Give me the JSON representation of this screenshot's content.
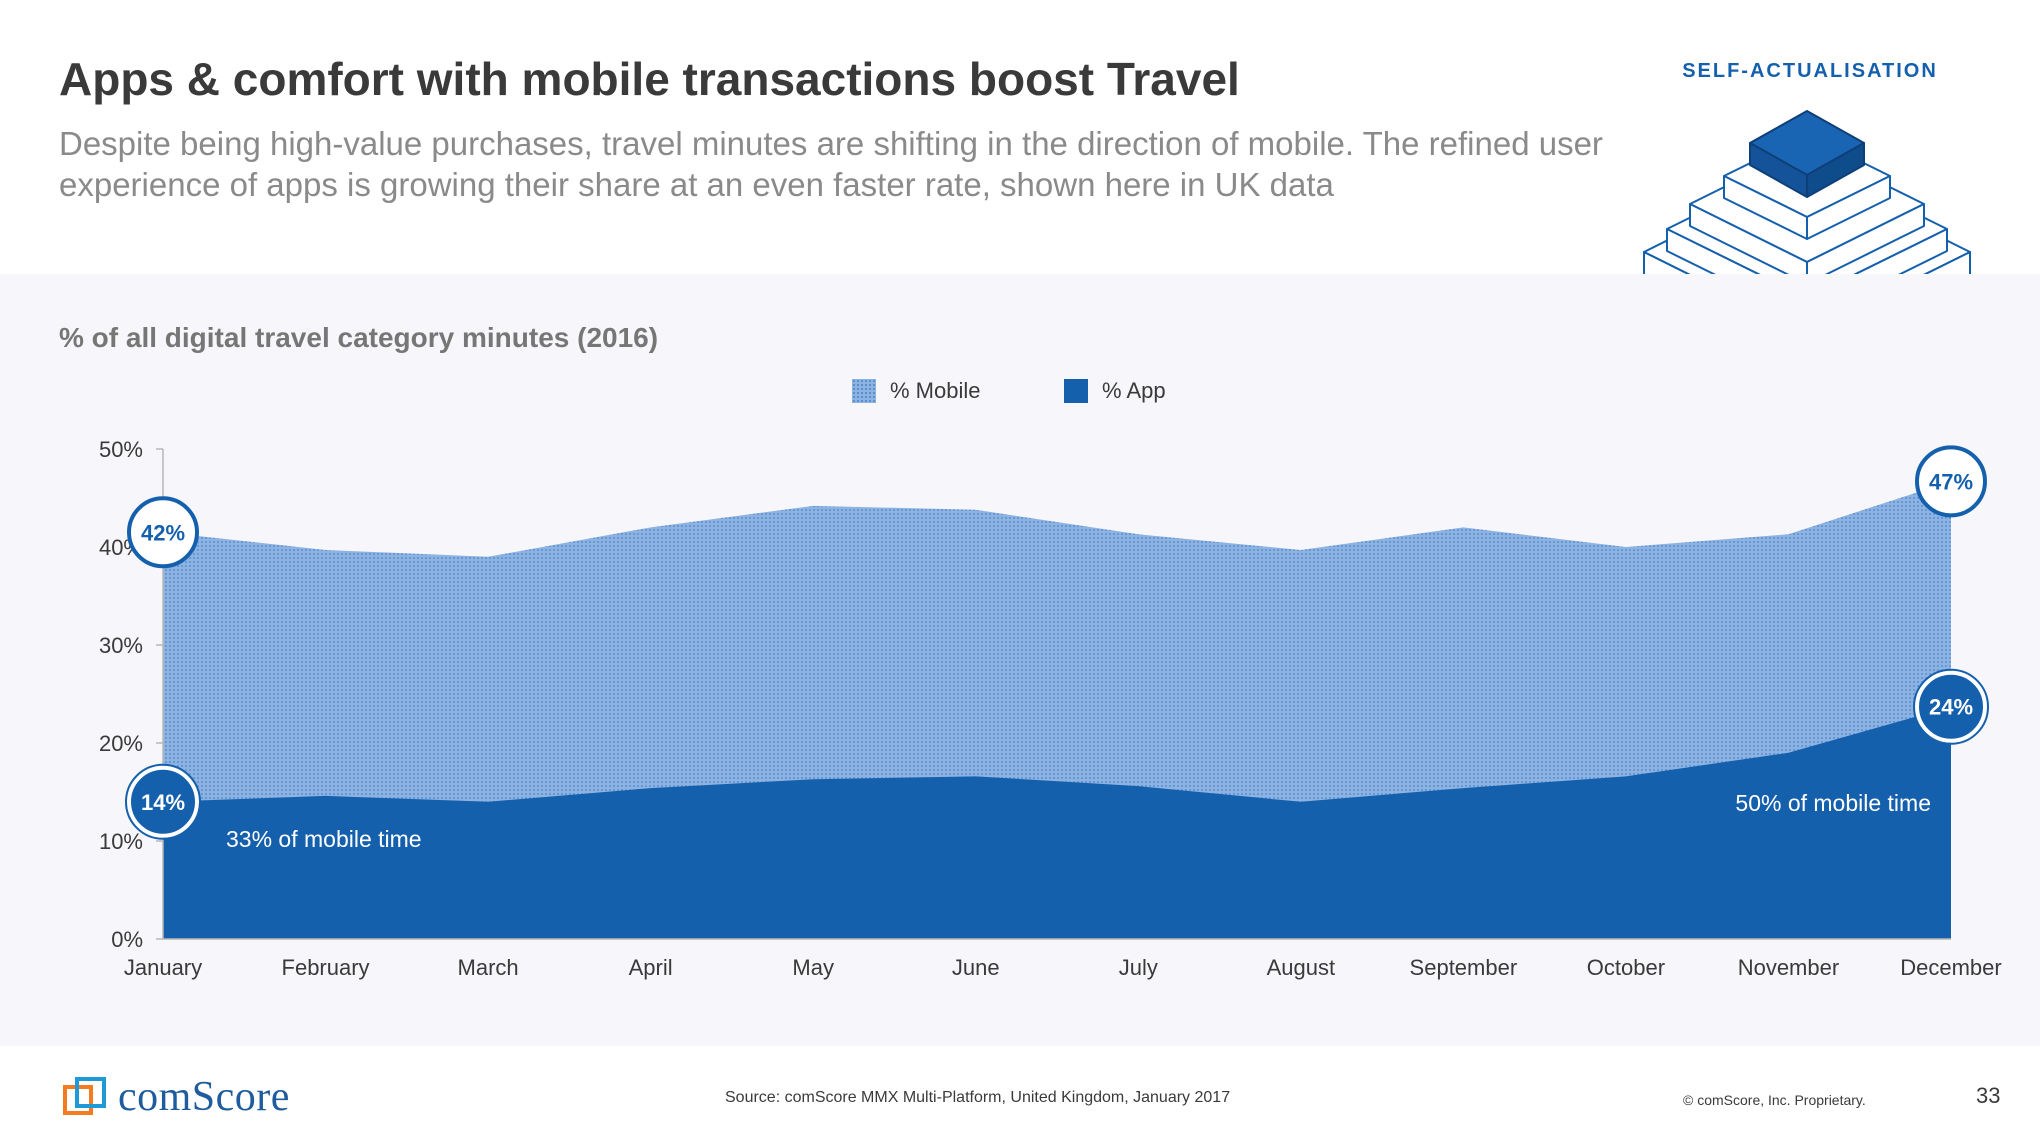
{
  "header": {
    "title": "Apps & comfort with mobile transactions boost Travel",
    "subtitle": "Despite being high-value purchases, travel minutes are shifting in the direction of mobile. The refined user experience of apps is growing their share at an even faster rate, shown here in UK data",
    "badge": "SELF-ACTUALISATION"
  },
  "colors": {
    "app": "#1560ad",
    "mobile": "#6b9bd6",
    "title": "#3a3a3a",
    "subtitle": "#8a8a8a",
    "accent": "#1560ad",
    "band": "#f7f7fb"
  },
  "chart_data": {
    "type": "area",
    "title": "% of all digital travel category minutes (2016)",
    "categories": [
      "January",
      "February",
      "March",
      "April",
      "May",
      "June",
      "July",
      "August",
      "September",
      "October",
      "November",
      "December"
    ],
    "series": [
      {
        "name": "% Mobile",
        "values": [
          41.5,
          39.7,
          39.0,
          42.0,
          44.2,
          43.8,
          41.3,
          39.7,
          42.0,
          40.0,
          41.3,
          46.7
        ]
      },
      {
        "name": "% App",
        "values": [
          14.0,
          14.6,
          14.0,
          15.4,
          16.3,
          16.6,
          15.6,
          14.0,
          15.4,
          16.6,
          19.0,
          23.7
        ]
      }
    ],
    "yticks": [
      "0%",
      "10%",
      "20%",
      "30%",
      "40%",
      "50%"
    ],
    "ylim": [
      0,
      50
    ],
    "callouts": [
      {
        "label": "42%",
        "month": 0,
        "series": "% Mobile"
      },
      {
        "label": "14%",
        "month": 0,
        "series": "% App"
      },
      {
        "label": "47%",
        "month": 11,
        "series": "% Mobile"
      },
      {
        "label": "24%",
        "month": 11,
        "series": "% App"
      }
    ],
    "annotations": [
      "33% of mobile time",
      "50% of mobile time"
    ]
  },
  "footer": {
    "brand": "comScore",
    "source": "Source: comScore MMX Multi-Platform, United Kingdom, January 2017",
    "copyright": "© comScore, Inc. Proprietary.",
    "page": "33"
  }
}
